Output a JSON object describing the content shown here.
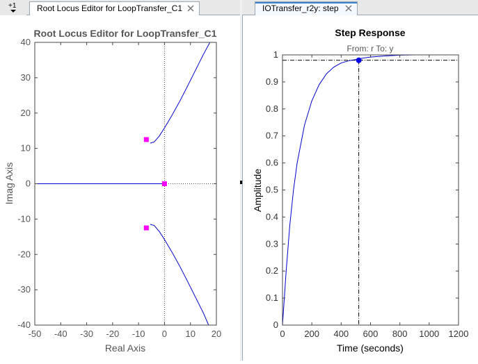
{
  "tabs_left": {
    "corner_label": "+1",
    "tab_label": "Root Locus Editor for LoopTransfer_C1"
  },
  "tabs_right": {
    "tab_label": "IOTransfer_r2y: step"
  },
  "root_locus": {
    "title": "Root Locus Editor for LoopTransfer_C1",
    "xlabel": "Real Axis",
    "ylabel": "Imag Axis",
    "xlim": [
      -50,
      20
    ],
    "ylim": [
      -40,
      40
    ],
    "xticks": [
      -50,
      -40,
      -30,
      -20,
      -10,
      0,
      10,
      20
    ],
    "yticks": [
      -40,
      -30,
      -20,
      -10,
      0,
      10,
      20,
      30,
      40
    ],
    "line_color": "#0000cc",
    "marker_color": "#ff00ff",
    "closed_loop_poles": [
      [
        -7,
        12.5
      ],
      [
        -7,
        -12.5
      ],
      [
        0,
        0
      ]
    ]
  },
  "step_response": {
    "title": "Step Response",
    "subtitle": "From: r  To: y",
    "xlabel": "Time (seconds)",
    "ylabel": "Amplitude",
    "xlim": [
      0,
      1200
    ],
    "ylim": [
      0,
      1
    ],
    "xticks": [
      0,
      200,
      400,
      600,
      800,
      1000,
      1200
    ],
    "yticks": [
      0,
      0.1,
      0.2,
      0.3,
      0.4,
      0.5,
      0.6,
      0.7,
      0.8,
      0.9,
      1
    ],
    "line_color": "#0000cc",
    "settling_marker": {
      "time": 520,
      "amplitude": 0.98
    }
  },
  "chart_data": [
    {
      "type": "line",
      "title": "Root Locus Editor for LoopTransfer_C1",
      "xlabel": "Real Axis",
      "ylabel": "Imag Axis",
      "xlim": [
        -50,
        20
      ],
      "ylim": [
        -40,
        40
      ],
      "series": [
        {
          "x": [
            -50,
            0
          ],
          "y": [
            0,
            0
          ]
        },
        {
          "x": [
            -5.5,
            -4,
            -2,
            0,
            3,
            6,
            9,
            12,
            15,
            17.5
          ],
          "y": [
            11.5,
            11.8,
            13.5,
            15.8,
            19.5,
            23.5,
            27.8,
            32.2,
            36.6,
            40
          ]
        },
        {
          "x": [
            -5.5,
            -4,
            -2,
            0,
            3,
            6,
            9,
            12,
            15,
            17
          ],
          "y": [
            -11.5,
            -11.8,
            -13.5,
            -15.8,
            -19.5,
            -23.5,
            -27.8,
            -32.2,
            -36.6,
            -40
          ]
        }
      ],
      "markers": [
        [
          -7,
          12.5
        ],
        [
          -7,
          -12.5
        ],
        [
          0,
          0
        ]
      ]
    },
    {
      "type": "line",
      "title": "Step Response",
      "subtitle": "From: r  To: y",
      "xlabel": "Time (seconds)",
      "ylabel": "Amplitude",
      "xlim": [
        0,
        1200
      ],
      "ylim": [
        0,
        1
      ],
      "series": [
        {
          "x": [
            0,
            25,
            50,
            75,
            100,
            150,
            200,
            250,
            300,
            350,
            400,
            450,
            500,
            550,
            600,
            700,
            800,
            900,
            1000,
            1200
          ],
          "y": [
            0,
            0.2,
            0.37,
            0.5,
            0.6,
            0.74,
            0.83,
            0.89,
            0.93,
            0.955,
            0.97,
            0.978,
            0.983,
            0.988,
            0.992,
            0.996,
            0.999,
            1.0,
            1.0,
            1.0
          ]
        }
      ],
      "settling_point": [
        520,
        0.98
      ]
    }
  ]
}
